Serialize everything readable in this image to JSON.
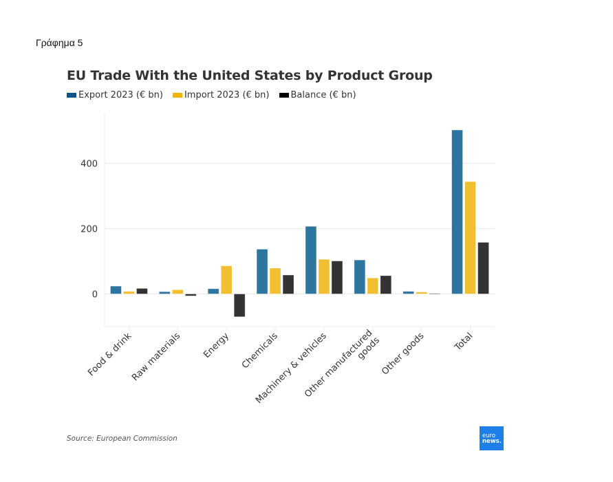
{
  "caption": "Γράφημα 5",
  "source": "Source: European Commission",
  "logo": {
    "line1": "euro",
    "line2": "news."
  },
  "colors": {
    "export": "#2e76a0",
    "import": "#f2bf33",
    "balance": "#333333",
    "legend_export": "#0f5289",
    "legend_import": "#f4b300",
    "legend_balance": "#000000",
    "grid": "#ececec",
    "axis_text": "#333333"
  },
  "chart_data": {
    "type": "bar",
    "title": "EU Trade With the United States by Product Group",
    "xlabel": "",
    "ylabel": "",
    "categories": [
      "Food & drink",
      "Raw materials",
      "Energy",
      "Chemicals",
      "Machinery & vehicles",
      "Other manufactured goods",
      "Other goods",
      "Total"
    ],
    "category_lines": [
      [
        "Food & drink"
      ],
      [
        "Raw materials"
      ],
      [
        "Energy"
      ],
      [
        "Chemicals"
      ],
      [
        "Machinery & vehicles"
      ],
      [
        "Other manufactured",
        "goods"
      ],
      [
        "Other goods"
      ],
      [
        "Total"
      ]
    ],
    "series": [
      {
        "name": "Export 2023 (€ bn)",
        "key": "export",
        "values": [
          24,
          7,
          16,
          137,
          207,
          104,
          8,
          502
        ]
      },
      {
        "name": "Import 2023 (€ bn)",
        "key": "import",
        "values": [
          8,
          13,
          86,
          79,
          106,
          49,
          6,
          344
        ]
      },
      {
        "name": "Balance (€ bn)",
        "key": "balance",
        "values": [
          17,
          -6,
          -70,
          58,
          101,
          56,
          2,
          158
        ]
      }
    ],
    "yticks": [
      0,
      200,
      400
    ],
    "ylim": [
      -100,
      550
    ],
    "grid": true,
    "legend_position": "top-left"
  }
}
